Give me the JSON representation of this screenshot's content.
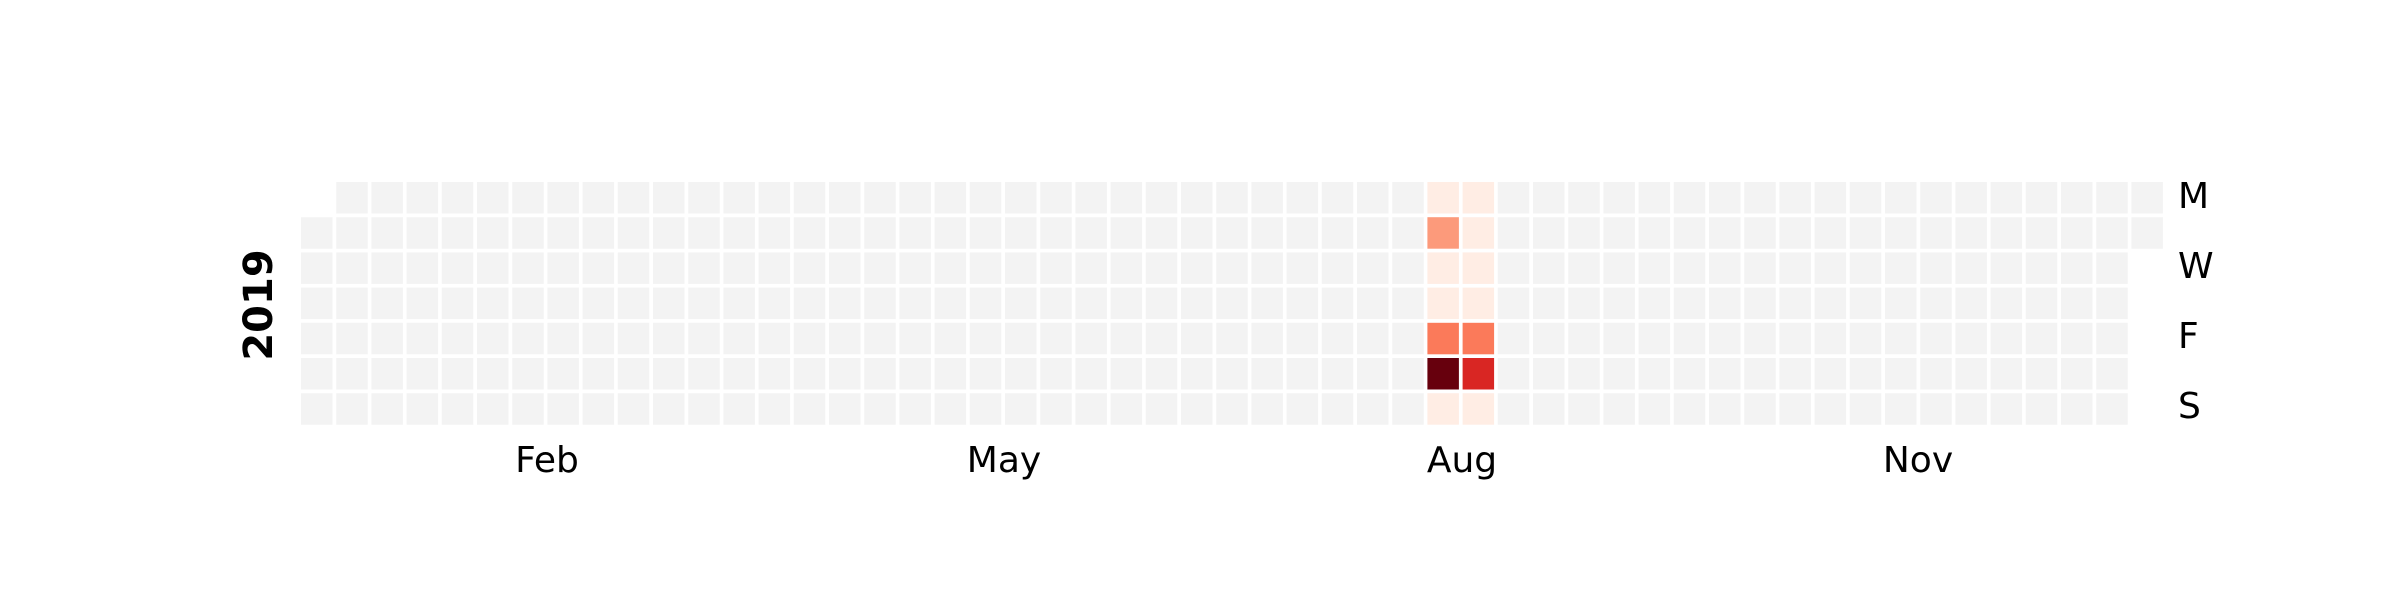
{
  "chart_data": {
    "type": "heatmap",
    "title": "",
    "year": "2019",
    "x_tick_labels": [
      "Feb",
      "May",
      "Aug",
      "Nov"
    ],
    "y_tick_labels": [
      "M",
      "W",
      "F",
      "S"
    ],
    "legend": "none",
    "grid": false,
    "colormap": "Reds",
    "empty_color": "#f3f3f3",
    "cell_border_color": "#ffffff",
    "values": [
      {
        "date": "2019-08-12",
        "level": 0.05
      },
      {
        "date": "2019-08-13",
        "level": 0.35
      },
      {
        "date": "2019-08-14",
        "level": 0.05
      },
      {
        "date": "2019-08-15",
        "level": 0.05
      },
      {
        "date": "2019-08-16",
        "level": 0.45
      },
      {
        "date": "2019-08-17",
        "level": 1.0
      },
      {
        "date": "2019-08-18",
        "level": 0.05
      },
      {
        "date": "2019-08-19",
        "level": 0.05
      },
      {
        "date": "2019-08-20",
        "level": 0.05
      },
      {
        "date": "2019-08-21",
        "level": 0.05
      },
      {
        "date": "2019-08-22",
        "level": 0.05
      },
      {
        "date": "2019-08-23",
        "level": 0.45
      },
      {
        "date": "2019-08-24",
        "level": 0.7
      },
      {
        "date": "2019-08-25",
        "level": 0.05
      }
    ]
  }
}
